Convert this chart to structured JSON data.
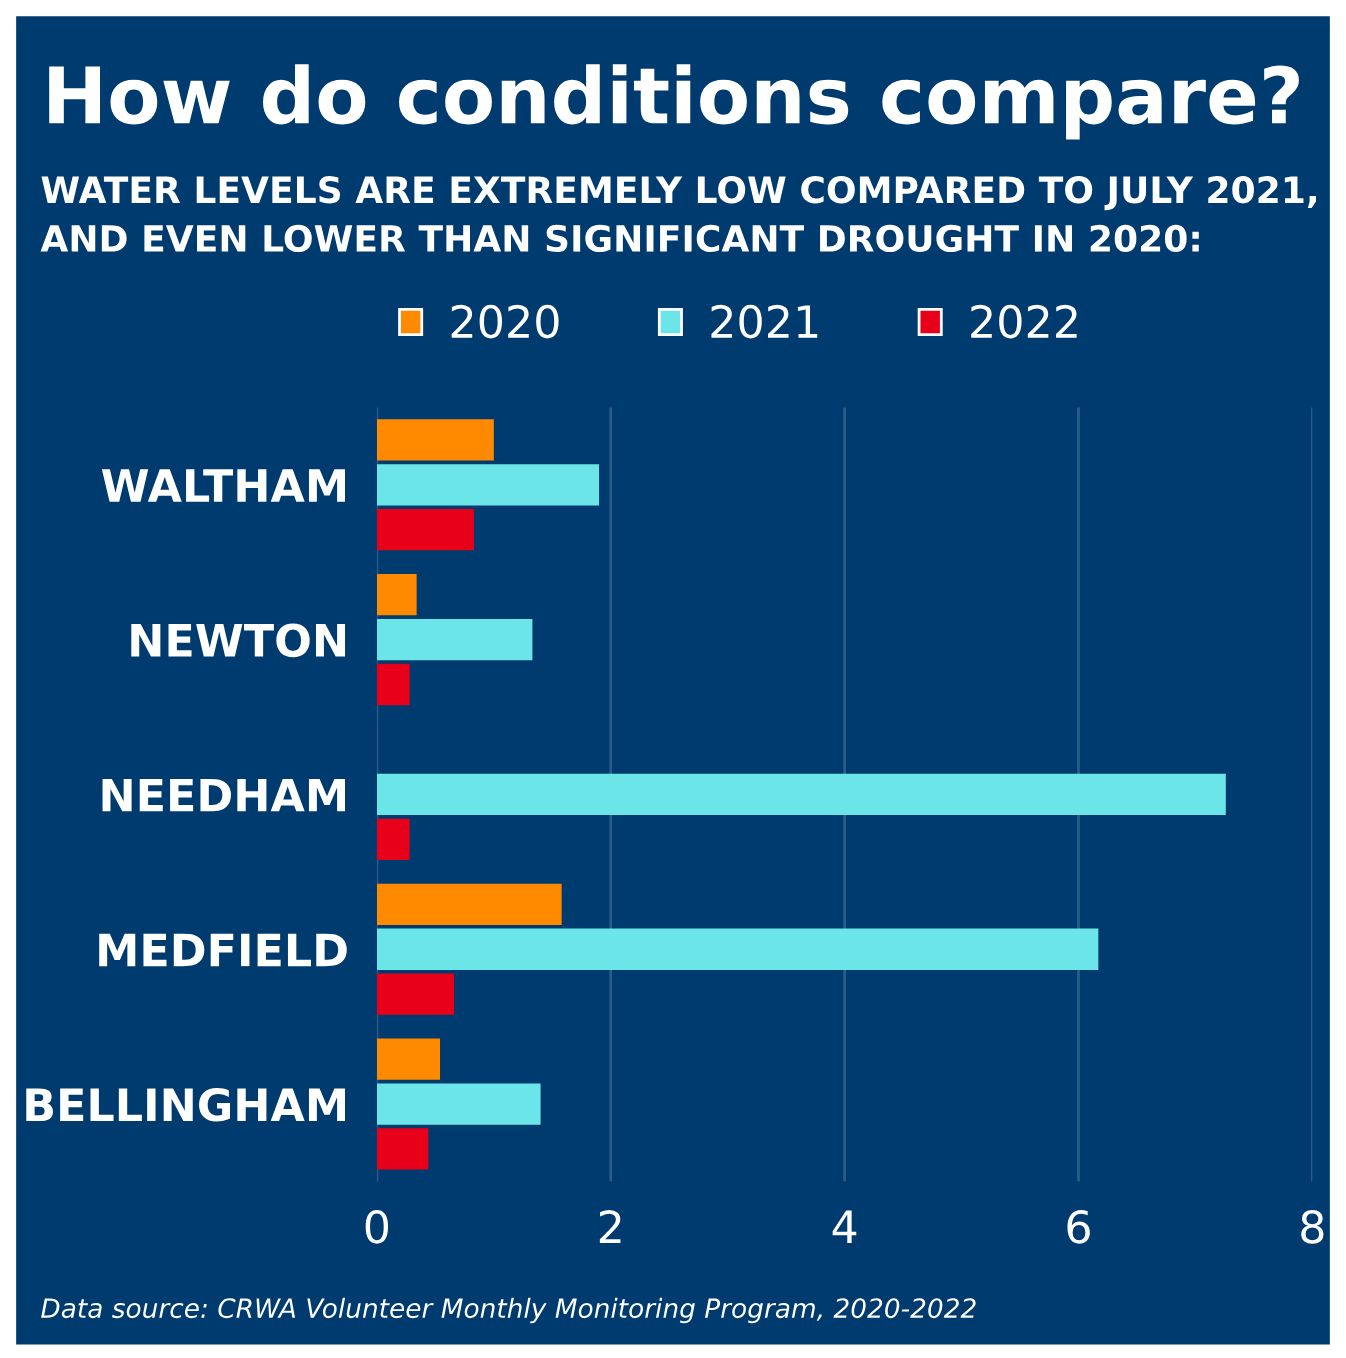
{
  "chart_data": {
    "type": "bar",
    "orientation": "horizontal",
    "title": "How do conditions compare?",
    "subtitle": "WATER LEVELS ARE EXTREMELY LOW COMPARED TO JULY 2021,\nAND EVEN LOWER THAN SIGNIFICANT DROUGHT IN 2020:",
    "categories": [
      "WALTHAM",
      "NEWTON",
      "NEEDHAM",
      "MEDFIELD",
      "BELLINGHAM"
    ],
    "series": [
      {
        "name": "2020",
        "color": "#ff8a00",
        "values": [
          1.0,
          0.34,
          null,
          1.58,
          0.54
        ]
      },
      {
        "name": "2021",
        "color": "#6be5e8",
        "values": [
          1.9,
          1.33,
          7.26,
          6.17,
          1.4
        ]
      },
      {
        "name": "2022",
        "color": "#e8001a",
        "values": [
          0.83,
          0.28,
          0.28,
          0.66,
          0.44
        ]
      }
    ],
    "xlim": [
      0,
      8
    ],
    "xticks": [
      0,
      2,
      4,
      6,
      8
    ],
    "grid": "x",
    "legend": "top",
    "annotations": [
      "Data source: CRWA Volunteer Monthly Monitoring Program, 2020-2022"
    ]
  }
}
